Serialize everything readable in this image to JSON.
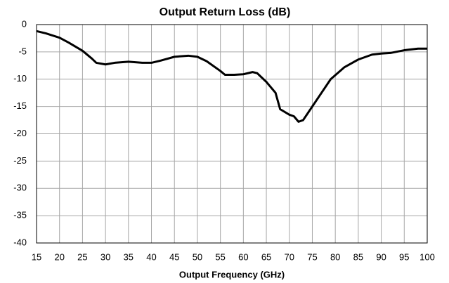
{
  "chart_data": {
    "type": "line",
    "title": "Output Return Loss (dB)",
    "xlabel": "Output Frequency (GHz)",
    "x": [
      15,
      17,
      20,
      22,
      25,
      27,
      28,
      30,
      32,
      35,
      38,
      40,
      42,
      45,
      48,
      50,
      52,
      55,
      56,
      58,
      60,
      62,
      63,
      65,
      67,
      68,
      70,
      71,
      72,
      73,
      75,
      77,
      79,
      82,
      85,
      88,
      90,
      92,
      95,
      98,
      100
    ],
    "values": [
      -1.2,
      -1.6,
      -2.4,
      -3.3,
      -4.8,
      -6.2,
      -7.0,
      -7.3,
      -7.0,
      -6.8,
      -7.0,
      -7.0,
      -6.6,
      -5.9,
      -5.7,
      -5.9,
      -6.7,
      -8.5,
      -9.2,
      -9.2,
      -9.1,
      -8.7,
      -8.9,
      -10.5,
      -12.5,
      -15.5,
      -16.5,
      -16.8,
      -17.8,
      -17.5,
      -15.0,
      -12.5,
      -10.0,
      -7.8,
      -6.4,
      -5.5,
      -5.3,
      -5.2,
      -4.7,
      -4.4,
      -4.4
    ],
    "color": "#000000",
    "xlim": [
      15,
      100
    ],
    "xticks": [
      15,
      20,
      25,
      30,
      35,
      40,
      45,
      50,
      55,
      60,
      65,
      70,
      75,
      80,
      85,
      90,
      95,
      100
    ],
    "ylim": [
      -40,
      0
    ],
    "yticks": [
      0,
      -5,
      -10,
      -15,
      -20,
      -25,
      -30,
      -35,
      -40
    ],
    "grid": true
  }
}
